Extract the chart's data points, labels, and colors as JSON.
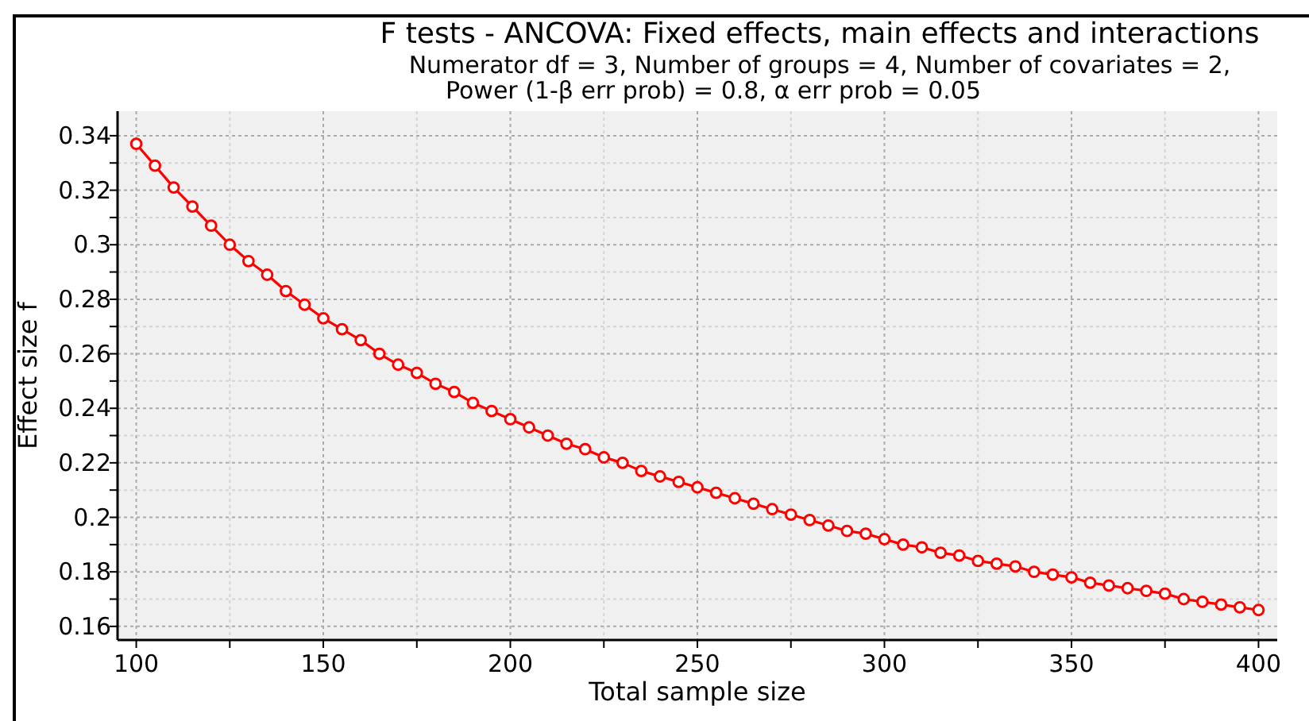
{
  "chart_data": {
    "type": "line",
    "title": "F tests - ANCOVA: Fixed effects, main effects and interactions",
    "subtitle": "Numerator df = 3, Number of groups = 4, Number of covariates = 2,\nPower (1-β err prob) = 0.8, α err prob = 0.05",
    "xlabel": "Total sample size",
    "ylabel": "Effect size f",
    "x": [
      100,
      105,
      110,
      115,
      120,
      125,
      130,
      135,
      140,
      145,
      150,
      155,
      160,
      165,
      170,
      175,
      180,
      185,
      190,
      195,
      200,
      205,
      210,
      215,
      220,
      225,
      230,
      235,
      240,
      245,
      250,
      255,
      260,
      265,
      270,
      275,
      280,
      285,
      290,
      295,
      300,
      305,
      310,
      315,
      320,
      325,
      330,
      335,
      340,
      345,
      350,
      355,
      360,
      365,
      370,
      375,
      380,
      385,
      390,
      395,
      400
    ],
    "series": [
      {
        "color": "#ff0000",
        "values": [
          0.337,
          0.329,
          0.321,
          0.314,
          0.307,
          0.3,
          0.294,
          0.289,
          0.283,
          0.278,
          0.273,
          0.269,
          0.265,
          0.26,
          0.256,
          0.253,
          0.249,
          0.246,
          0.242,
          0.239,
          0.236,
          0.233,
          0.23,
          0.227,
          0.225,
          0.222,
          0.22,
          0.217,
          0.215,
          0.213,
          0.211,
          0.209,
          0.207,
          0.205,
          0.203,
          0.201,
          0.199,
          0.197,
          0.195,
          0.194,
          0.192,
          0.19,
          0.189,
          0.187,
          0.186,
          0.184,
          0.183,
          0.182,
          0.18,
          0.179,
          0.178,
          0.176,
          0.175,
          0.174,
          0.173,
          0.172,
          0.17,
          0.169,
          0.168,
          0.167,
          0.166
        ]
      }
    ],
    "xlim": [
      95,
      405
    ],
    "ylim": [
      0.155,
      0.349
    ],
    "xticks": [
      100,
      {
        "value": 125,
        "label": null
      },
      150,
      {
        "value": 175,
        "label": null
      },
      200,
      {
        "value": 225,
        "label": null
      },
      250,
      {
        "value": 275,
        "label": null
      },
      300,
      {
        "value": 325,
        "label": null
      },
      350,
      {
        "value": 375,
        "label": null
      },
      400
    ],
    "yticks": [
      0.16,
      {
        "value": 0.17,
        "label": null
      },
      0.18,
      {
        "value": 0.19,
        "label": null
      },
      0.2,
      {
        "value": 0.21,
        "label": null
      },
      0.22,
      {
        "value": 0.23,
        "label": null
      },
      0.24,
      {
        "value": 0.25,
        "label": null
      },
      0.26,
      {
        "value": 0.27,
        "label": null
      },
      0.28,
      {
        "value": 0.29,
        "label": null
      },
      0.3,
      {
        "value": 0.31,
        "label": null
      },
      0.32,
      {
        "value": 0.33,
        "label": null
      },
      0.34
    ],
    "grid": true,
    "marker": "circle",
    "line_style": "solid"
  }
}
